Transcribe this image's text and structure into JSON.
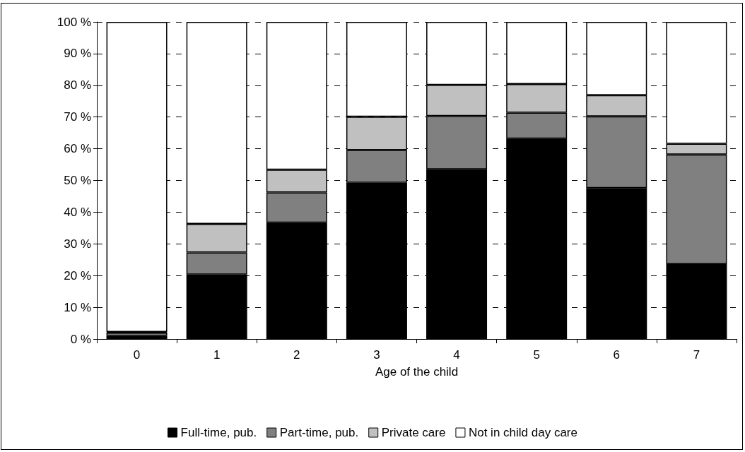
{
  "chart_data": {
    "type": "bar",
    "stacked": true,
    "xlabel": "Age of the child",
    "categories": [
      "0",
      "1",
      "2",
      "3",
      "4",
      "5",
      "6",
      "7"
    ],
    "series": [
      {
        "name": "Full-time, pub.",
        "color": "#000000",
        "values": [
          1,
          20.3,
          36.7,
          49.3,
          53.5,
          63.2,
          47.6,
          23.6
        ]
      },
      {
        "name": "Part-time, pub.",
        "color": "#808080",
        "values": [
          1,
          7,
          9.5,
          10.3,
          16.8,
          8.2,
          22.6,
          34.6
        ]
      },
      {
        "name": "Private care",
        "color": "#c0c0c0",
        "values": [
          0.2,
          9,
          7.2,
          10.5,
          9.8,
          9,
          6.7,
          3.4
        ]
      },
      {
        "name": "Not in child day care",
        "color": "#ffffff",
        "values": [
          97.8,
          63.7,
          46.6,
          29.9,
          19.9,
          19.6,
          23.1,
          38.4
        ]
      }
    ],
    "ylim": [
      0,
      100
    ],
    "yticks": [
      {
        "value": 0,
        "label": "0 %"
      },
      {
        "value": 10,
        "label": "10 %"
      },
      {
        "value": 20,
        "label": "20 %"
      },
      {
        "value": 30,
        "label": "30 %"
      },
      {
        "value": 40,
        "label": "40 %"
      },
      {
        "value": 50,
        "label": "50 %"
      },
      {
        "value": 60,
        "label": "60 %"
      },
      {
        "value": 70,
        "label": "70 %"
      },
      {
        "value": 80,
        "label": "80 %"
      },
      {
        "value": 90,
        "label": "90 %"
      },
      {
        "value": 100,
        "label": "100 %"
      }
    ],
    "grid": "y",
    "legend": "bottom"
  }
}
